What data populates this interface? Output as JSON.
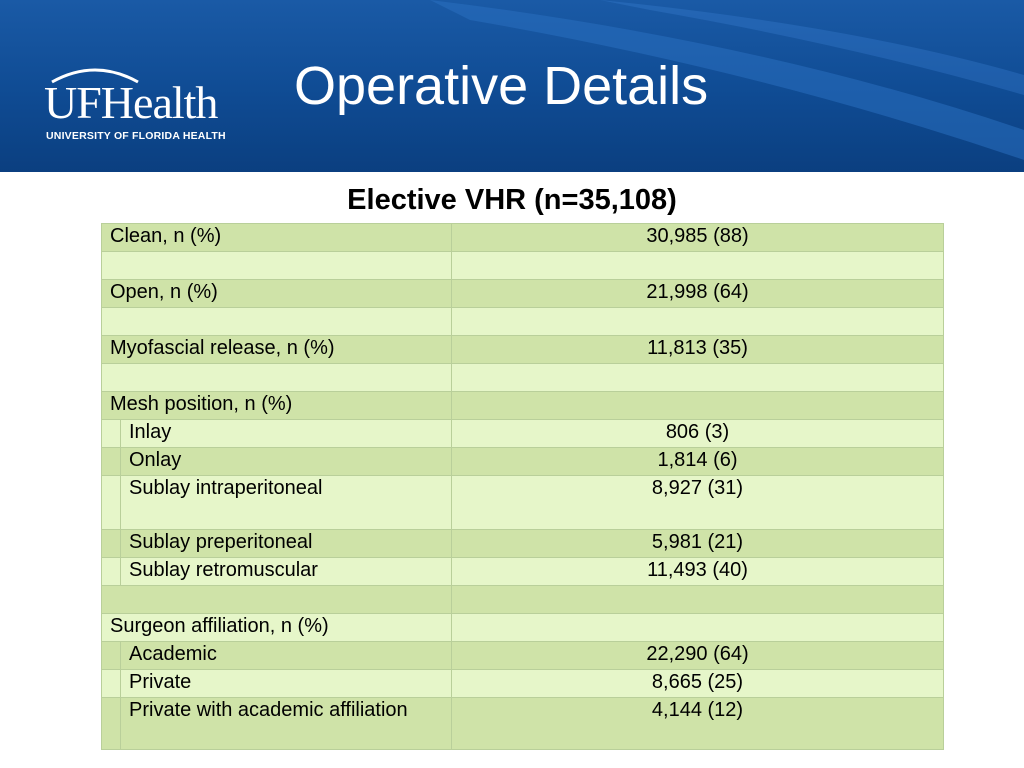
{
  "header": {
    "logo_text": "UFHealth",
    "logo_subtext": "UNIVERSITY OF FLORIDA HEALTH",
    "title": "Operative Details",
    "colors": {
      "band": "#0f4b93",
      "swoosh": "#2a6fc0"
    }
  },
  "table": {
    "heading": "Elective VHR (n=35,108)",
    "colors": {
      "dark_row": "#cfe3a8",
      "light_row": "#e6f6c9"
    },
    "rows": [
      {
        "label": "Clean, n (%)",
        "value": "30,985 (88)"
      },
      {
        "label": "",
        "value": ""
      },
      {
        "label": "Open, n (%)",
        "value": "21,998 (64)"
      },
      {
        "label": "",
        "value": ""
      },
      {
        "label": "Myofascial release, n (%)",
        "value": "11,813 (35)"
      },
      {
        "label": "",
        "value": ""
      },
      {
        "label": "Mesh position, n (%)",
        "value": ""
      },
      {
        "label": "Inlay",
        "value": "806 (3)"
      },
      {
        "label": "Onlay",
        "value": "1,814 (6)"
      },
      {
        "label": "Sublay intraperitoneal",
        "value": "8,927 (31)"
      },
      {
        "label": "Sublay preperitoneal",
        "value": "5,981 (21)"
      },
      {
        "label": "Sublay retromuscular",
        "value": "11,493 (40)"
      },
      {
        "label": "",
        "value": ""
      },
      {
        "label": "Surgeon affiliation, n (%)",
        "value": ""
      },
      {
        "label": "Academic",
        "value": "22,290 (64)"
      },
      {
        "label": "Private",
        "value": "8,665 (25)"
      },
      {
        "label": "Private with academic affiliation",
        "value": "4,144 (12)"
      }
    ]
  }
}
